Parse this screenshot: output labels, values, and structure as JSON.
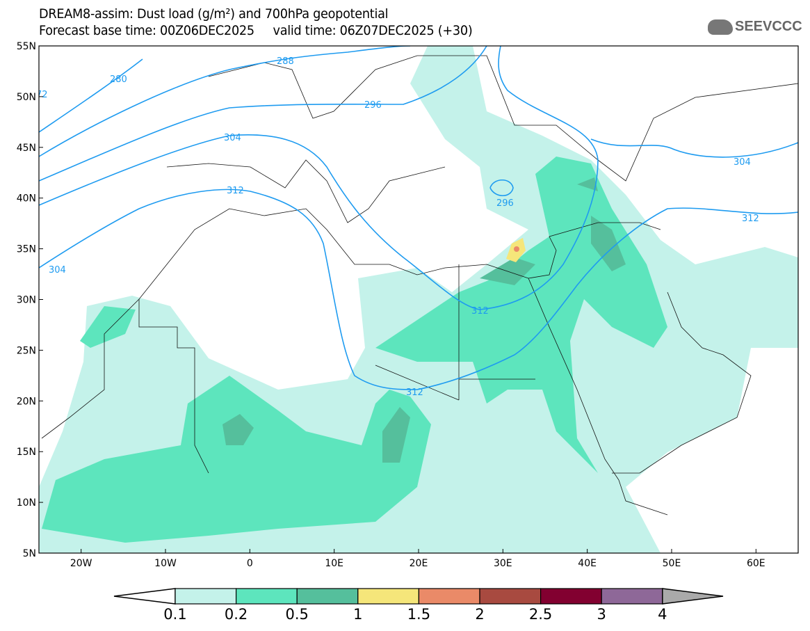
{
  "header": {
    "title": "DREAM8-assim: Dust load (g/m²) and 700hPa geopotential",
    "subtitle": "Forecast base time: 00Z06DEC2025     valid time: 06Z07DEC2025 (+30)"
  },
  "logo": {
    "text": "SEEVCCC"
  },
  "map": {
    "lat_labels": [
      "55N",
      "50N",
      "45N",
      "40N",
      "35N",
      "30N",
      "25N",
      "20N",
      "15N",
      "10N",
      "5N"
    ],
    "lon_labels": [
      "20W",
      "10W",
      "0",
      "10E",
      "20E",
      "30E",
      "40E",
      "50E",
      "60E"
    ],
    "contour_labels": [
      "280",
      "288",
      "296",
      "304",
      "312",
      "312",
      "304",
      "296",
      "304",
      "312",
      "312",
      "72"
    ]
  },
  "colorbar": {
    "labels": [
      "0.1",
      "0.2",
      "0.5",
      "1",
      "1.5",
      "2",
      "2.5",
      "3",
      "4"
    ],
    "colors": [
      "#c4f2ea",
      "#5de5bd",
      "#55bf9c",
      "#f5e67a",
      "#ea8a68",
      "#a84a40",
      "#820030",
      "#8e6898"
    ],
    "under_color": "#ffffff",
    "over_color": "#aaaaaa"
  }
}
